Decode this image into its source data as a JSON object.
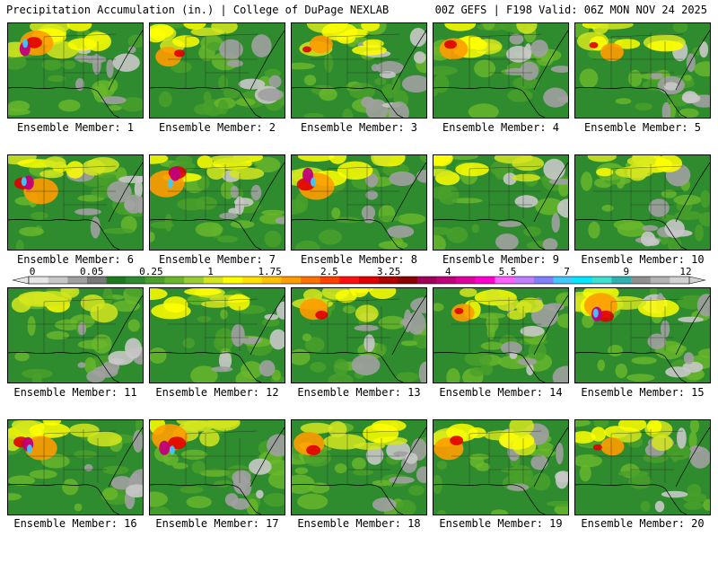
{
  "header": {
    "left": "Precipitation Accumulation (in.) | College of DuPage NEXLAB",
    "right": "00Z GEFS | F198 Valid: 06Z MON NOV 24 2025"
  },
  "colorbar": {
    "labels": [
      "0",
      "0.05",
      "0.25",
      "1",
      "1.75",
      "2.5",
      "3.25",
      "4",
      "5.5",
      "7",
      "9",
      "12"
    ],
    "colors": [
      "#e6e6e6",
      "#c8c8c8",
      "#a0a0a0",
      "#787878",
      "#1e7a1e",
      "#2e8b2e",
      "#4aa02a",
      "#6ab82a",
      "#9acd32",
      "#d4e61e",
      "#ffff00",
      "#ffe000",
      "#ffc000",
      "#ff9c00",
      "#ff7000",
      "#ff4000",
      "#ff1010",
      "#e00000",
      "#b00000",
      "#8b0000",
      "#a0005a",
      "#c0007a",
      "#e000a0",
      "#ff00d0",
      "#ff60ff",
      "#c080ff",
      "#8080ff",
      "#40c8ff",
      "#00e6ff",
      "#40e0d0",
      "#30b0b0",
      "#909090",
      "#b4b4b4",
      "#d2d2d2"
    ]
  },
  "members": [
    {
      "label": "Ensemble Member: 1"
    },
    {
      "label": "Ensemble Member: 2"
    },
    {
      "label": "Ensemble Member: 3"
    },
    {
      "label": "Ensemble Member: 4"
    },
    {
      "label": "Ensemble Member: 5"
    },
    {
      "label": "Ensemble Member: 6"
    },
    {
      "label": "Ensemble Member: 7"
    },
    {
      "label": "Ensemble Member: 8"
    },
    {
      "label": "Ensemble Member: 9"
    },
    {
      "label": "Ensemble Member: 10"
    },
    {
      "label": "Ensemble Member: 11"
    },
    {
      "label": "Ensemble Member: 12"
    },
    {
      "label": "Ensemble Member: 13"
    },
    {
      "label": "Ensemble Member: 14"
    },
    {
      "label": "Ensemble Member: 15"
    },
    {
      "label": "Ensemble Member: 16"
    },
    {
      "label": "Ensemble Member: 17"
    },
    {
      "label": "Ensemble Member: 18"
    },
    {
      "label": "Ensemble Member: 19"
    },
    {
      "label": "Ensemble Member: 20"
    }
  ]
}
